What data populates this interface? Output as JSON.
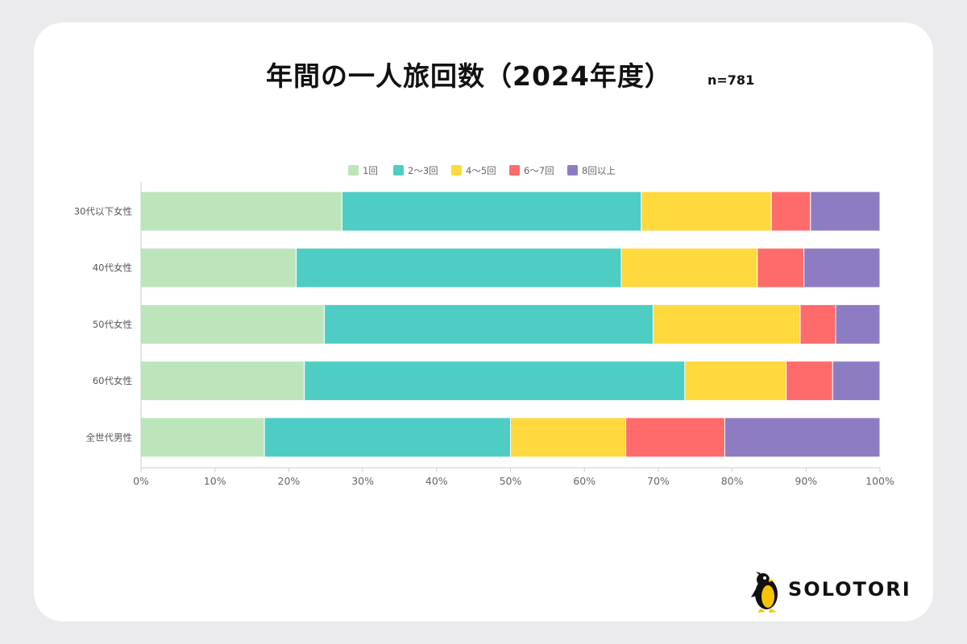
{
  "header": {
    "title": "年間の一人旅回数（2024年度）",
    "subtitle": "n=781"
  },
  "brand": {
    "name": "SOLOTORI",
    "logo_icon": "penguin-icon"
  },
  "chart_data": {
    "type": "bar",
    "orientation": "horizontal",
    "stacked": true,
    "categories": [
      "30代以下女性",
      "40代女性",
      "50代女性",
      "60代女性",
      "全世代男性"
    ],
    "series": [
      {
        "name": "1回",
        "color": "#bde5bc",
        "values": [
          27.2,
          21.0,
          24.8,
          22.1,
          16.7
        ]
      },
      {
        "name": "2〜3回",
        "color": "#4ecdc4",
        "values": [
          40.5,
          44.0,
          44.5,
          51.5,
          33.3
        ]
      },
      {
        "name": "4〜5回",
        "color": "#ffd93d",
        "values": [
          17.6,
          18.4,
          19.9,
          13.7,
          15.6
        ]
      },
      {
        "name": "6〜7回",
        "color": "#ff6b6b",
        "values": [
          5.3,
          6.3,
          4.8,
          6.3,
          13.4
        ]
      },
      {
        "name": "8回以上",
        "color": "#8e7cc3",
        "values": [
          9.4,
          10.3,
          6.0,
          6.4,
          21.0
        ]
      }
    ],
    "x_ticks": [
      "0%",
      "10%",
      "20%",
      "30%",
      "40%",
      "50%",
      "60%",
      "70%",
      "80%",
      "90%",
      "100%"
    ],
    "xlim": [
      0,
      100
    ],
    "legend_position": "top",
    "grid": false
  }
}
